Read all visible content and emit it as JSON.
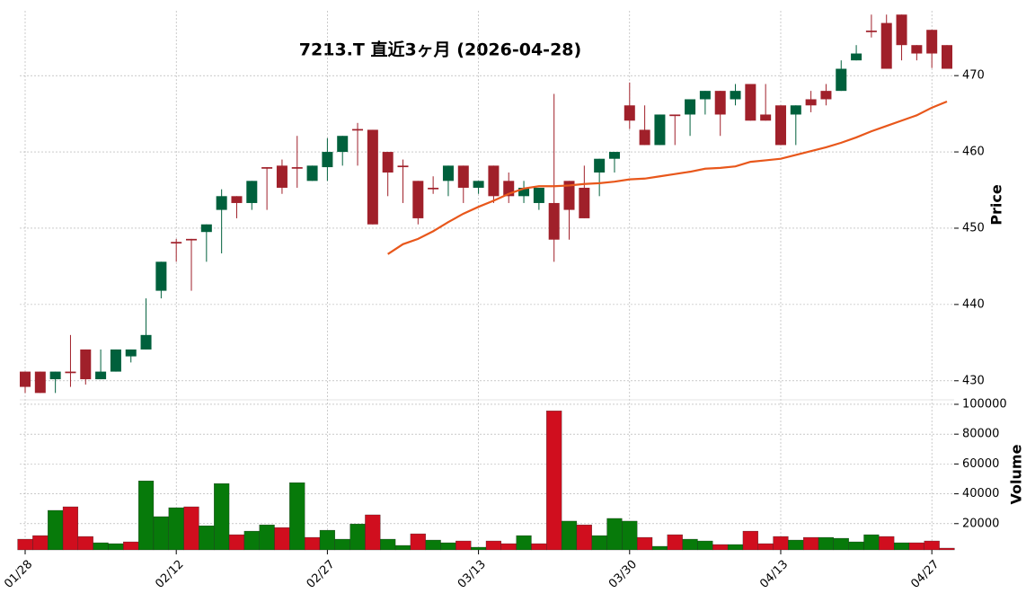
{
  "chart_data": {
    "type": "candlestick",
    "title": "7213.T  直近3ヶ月  (2026-04-28)",
    "ylabel": "Price",
    "categories": [
      "01/28",
      null,
      null,
      null,
      null,
      null,
      null,
      null,
      null,
      null,
      "02/12",
      null,
      null,
      null,
      null,
      null,
      null,
      null,
      null,
      null,
      "02/27",
      null,
      null,
      null,
      null,
      null,
      null,
      null,
      null,
      null,
      "03/13",
      null,
      null,
      null,
      null,
      null,
      null,
      null,
      null,
      null,
      "03/30",
      null,
      null,
      null,
      null,
      null,
      null,
      null,
      null,
      null,
      "04/13",
      null,
      null,
      null,
      null,
      null,
      null,
      null,
      null,
      null,
      "04/27",
      null
    ],
    "open": [
      431.2,
      431.2,
      430.2,
      431.2,
      434.1,
      430.2,
      431.2,
      433.2,
      434.1,
      441.8,
      448.2,
      448.6,
      449.5,
      452.4,
      454.2,
      453.3,
      458.0,
      458.2,
      458.0,
      456.2,
      458.0,
      460.0,
      463.0,
      462.9,
      460.0,
      458.2,
      456.2,
      455.3,
      456.2,
      458.2,
      455.3,
      458.2,
      456.2,
      454.2,
      453.3,
      453.3,
      456.2,
      455.3,
      457.3,
      459.1,
      466.1,
      462.9,
      460.9,
      464.9,
      464.9,
      466.9,
      468.0,
      466.9,
      468.9,
      464.9,
      466.1,
      464.9,
      466.9,
      468.0,
      468.0,
      472.0,
      475.9,
      476.9,
      478.0,
      474.0,
      476.0,
      474.0
    ],
    "high": [
      431.2,
      431.2,
      431.2,
      436.0,
      434.1,
      434.1,
      434.1,
      434.1,
      440.8,
      445.6,
      448.6,
      448.6,
      450.5,
      455.1,
      454.2,
      456.2,
      458.0,
      459.0,
      462.1,
      458.2,
      461.8,
      462.1,
      463.8,
      462.9,
      460.0,
      459.0,
      456.2,
      456.8,
      458.2,
      458.2,
      456.2,
      458.2,
      457.3,
      456.2,
      455.3,
      467.6,
      456.2,
      458.2,
      459.1,
      460.0,
      469.1,
      466.1,
      464.9,
      464.9,
      466.9,
      468.0,
      468.0,
      468.9,
      468.9,
      468.9,
      466.1,
      466.1,
      468.0,
      468.9,
      472.0,
      474.0,
      478.0,
      478.0,
      478.0,
      474.0,
      476.0,
      474.0
    ],
    "low": [
      428.4,
      428.4,
      428.4,
      429.2,
      429.5,
      430.2,
      431.2,
      432.4,
      434.1,
      440.8,
      445.6,
      441.8,
      445.6,
      446.7,
      451.3,
      452.4,
      452.4,
      454.5,
      455.3,
      456.2,
      456.2,
      458.2,
      458.2,
      450.5,
      454.2,
      453.3,
      450.5,
      454.5,
      454.2,
      453.3,
      454.5,
      453.3,
      453.3,
      453.3,
      452.4,
      445.6,
      448.5,
      451.3,
      454.2,
      457.3,
      463.0,
      460.9,
      460.9,
      460.9,
      462.1,
      464.9,
      462.1,
      466.1,
      464.1,
      464.1,
      460.9,
      460.9,
      465.2,
      466.1,
      468.0,
      472.0,
      475.0,
      470.9,
      472.0,
      472.0,
      471.0,
      470.9
    ],
    "close": [
      429.2,
      428.4,
      431.2,
      431.0,
      430.2,
      431.2,
      434.1,
      434.1,
      436.0,
      445.6,
      448.0,
      448.4,
      450.5,
      454.2,
      453.3,
      456.2,
      457.8,
      455.3,
      457.8,
      458.2,
      460.0,
      462.1,
      462.8,
      450.5,
      457.3,
      458.0,
      451.3,
      455.1,
      458.2,
      455.3,
      456.2,
      454.2,
      454.2,
      455.3,
      455.3,
      448.5,
      452.4,
      451.3,
      459.1,
      460.0,
      464.1,
      460.9,
      464.9,
      464.7,
      466.9,
      468.0,
      464.9,
      468.0,
      464.1,
      464.1,
      460.9,
      466.1,
      466.1,
      466.9,
      470.9,
      472.9,
      475.7,
      470.9,
      474.0,
      472.9,
      472.9,
      470.9
    ],
    "up_color": "#00603c",
    "down_color": "#a0202a",
    "ma": {
      "color": "#e8571b",
      "values": [
        null,
        null,
        null,
        null,
        null,
        null,
        null,
        null,
        null,
        null,
        null,
        null,
        null,
        null,
        null,
        null,
        null,
        null,
        null,
        null,
        null,
        null,
        null,
        null,
        446.6,
        447.9,
        448.6,
        449.6,
        450.8,
        451.9,
        452.8,
        453.6,
        454.5,
        455.2,
        455.5,
        455.5,
        455.6,
        455.8,
        455.9,
        456.1,
        456.4,
        456.5,
        456.8,
        457.1,
        457.4,
        457.8,
        457.9,
        458.1,
        458.7,
        458.9,
        459.1,
        459.6,
        460.1,
        460.6,
        461.2,
        461.9,
        462.7,
        463.4,
        464.1,
        464.8,
        465.8,
        466.6
      ]
    },
    "ylim": [
      427.5,
      478.5
    ],
    "yticks": [
      430,
      440,
      450,
      460,
      470
    ],
    "grid": true,
    "volume": {
      "ylabel": "Volume",
      "ylim": [
        2400,
        103000
      ],
      "yticks": [
        20000,
        40000,
        60000,
        80000,
        100000
      ],
      "values": [
        9600,
        12000,
        28900,
        31300,
        11400,
        7200,
        6600,
        7800,
        48700,
        24700,
        30700,
        31300,
        18600,
        46900,
        12600,
        15000,
        19200,
        17400,
        47500,
        10800,
        15600,
        9600,
        19800,
        25900,
        9600,
        5400,
        13200,
        9000,
        7200,
        8400,
        4200,
        8400,
        6600,
        12000,
        6600,
        95600,
        21700,
        19200,
        12000,
        23500,
        21700,
        10800,
        4800,
        12600,
        9600,
        8400,
        6000,
        6000,
        15000,
        6600,
        11400,
        9000,
        10800,
        10800,
        10200,
        7800,
        12600,
        11400,
        7200,
        7200,
        8400,
        3600
      ],
      "colors": [
        "#d00e1e",
        "#d00e1e",
        "#077a0a",
        "#d00e1e",
        "#d00e1e",
        "#077a0a",
        "#077a0a",
        "#d00e1e",
        "#077a0a",
        "#077a0a",
        "#077a0a",
        "#d00e1e",
        "#077a0a",
        "#077a0a",
        "#d00e1e",
        "#077a0a",
        "#077a0a",
        "#d00e1e",
        "#077a0a",
        "#d00e1e",
        "#077a0a",
        "#077a0a",
        "#077a0a",
        "#d00e1e",
        "#077a0a",
        "#077a0a",
        "#d00e1e",
        "#077a0a",
        "#077a0a",
        "#d00e1e",
        "#077a0a",
        "#d00e1e",
        "#d00e1e",
        "#077a0a",
        "#d00e1e",
        "#d00e1e",
        "#077a0a",
        "#d00e1e",
        "#077a0a",
        "#077a0a",
        "#077a0a",
        "#d00e1e",
        "#077a0a",
        "#d00e1e",
        "#077a0a",
        "#077a0a",
        "#d00e1e",
        "#077a0a",
        "#d00e1e",
        "#d00e1e",
        "#d00e1e",
        "#077a0a",
        "#d00e1e",
        "#077a0a",
        "#077a0a",
        "#077a0a",
        "#077a0a",
        "#d00e1e",
        "#077a0a",
        "#d00e1e",
        "#d00e1e",
        "#d00e1e"
      ]
    }
  }
}
